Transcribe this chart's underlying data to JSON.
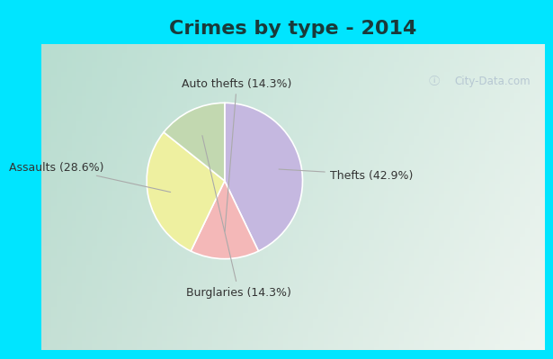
{
  "title": "Crimes by type - 2014",
  "slices": [
    {
      "label": "Thefts (42.9%)",
      "value": 42.9,
      "color": "#c5b8e0"
    },
    {
      "label": "Auto thefts (14.3%)",
      "value": 14.3,
      "color": "#f4b8b8"
    },
    {
      "label": "Assaults (28.6%)",
      "value": 28.6,
      "color": "#eef0a0"
    },
    {
      "label": "Burglaries (14.3%)",
      "value": 14.3,
      "color": "#c2d8b0"
    }
  ],
  "bg_top_color": "#00e5ff",
  "bg_main_tl": "#b8ddd0",
  "bg_main_tr": "#e0efe8",
  "bg_main_bl": "#c5e0d5",
  "bg_main_br": "#e8f5f0",
  "title_fontsize": 16,
  "label_fontsize": 9,
  "watermark": "City-Data.com",
  "cyan_border": "#00e5ff",
  "label_color": "#333333",
  "leader_color": "#aaaaaa"
}
